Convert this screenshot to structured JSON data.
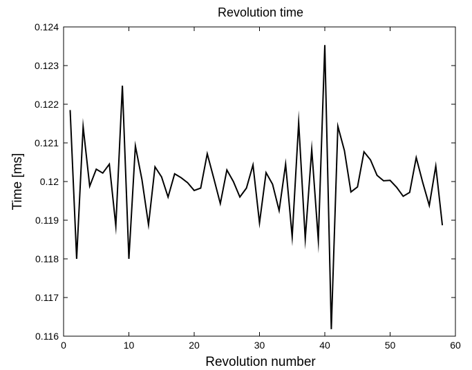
{
  "chart_data": {
    "type": "line",
    "title": "Revolution time",
    "xlabel": "Revolution number",
    "ylabel": "Time [ms]",
    "xlim": [
      0,
      60
    ],
    "ylim": [
      0.116,
      0.124
    ],
    "xticks": [
      0,
      10,
      20,
      30,
      40,
      50,
      60
    ],
    "yticks": [
      0.116,
      0.117,
      0.118,
      0.119,
      0.12,
      0.121,
      0.122,
      0.123,
      0.124
    ],
    "xtick_labels": [
      "0",
      "10",
      "20",
      "30",
      "40",
      "50",
      "60"
    ],
    "ytick_labels": [
      "0.116",
      "0.117",
      "0.118",
      "0.119",
      "0.12",
      "0.121",
      "0.122",
      "0.123",
      "0.124"
    ],
    "grid": false,
    "series": [
      {
        "color": "#000000",
        "x": [
          1,
          2,
          3,
          4,
          5,
          6,
          7,
          8,
          9,
          10,
          11,
          12,
          13,
          14,
          15,
          16,
          17,
          18,
          19,
          20,
          21,
          22,
          23,
          24,
          25,
          26,
          27,
          28,
          29,
          30,
          31,
          32,
          33,
          34,
          35,
          36,
          37,
          38,
          39,
          40,
          41,
          42,
          43,
          44,
          45,
          46,
          47,
          48,
          49,
          50,
          51,
          52,
          53,
          54,
          55,
          56,
          57,
          58
        ],
        "y": [
          0.12185,
          0.118,
          0.12142,
          0.11988,
          0.12032,
          0.12022,
          0.12045,
          0.11885,
          0.12248,
          0.118,
          0.12092,
          0.12005,
          0.11888,
          0.12038,
          0.12012,
          0.1196,
          0.1202,
          0.1201,
          0.11997,
          0.11977,
          0.11983,
          0.12072,
          0.12008,
          0.11943,
          0.1203,
          0.12,
          0.1196,
          0.11983,
          0.12043,
          0.11893,
          0.12023,
          0.11993,
          0.11925,
          0.12045,
          0.11857,
          0.12153,
          0.11852,
          0.12083,
          0.11848,
          0.12353,
          0.11618,
          0.12143,
          0.1208,
          0.11973,
          0.11986,
          0.12077,
          0.12056,
          0.12016,
          0.12002,
          0.12003,
          0.11985,
          0.11962,
          0.11972,
          0.12062,
          0.11997,
          0.11938,
          0.1204,
          0.11887
        ]
      }
    ]
  }
}
